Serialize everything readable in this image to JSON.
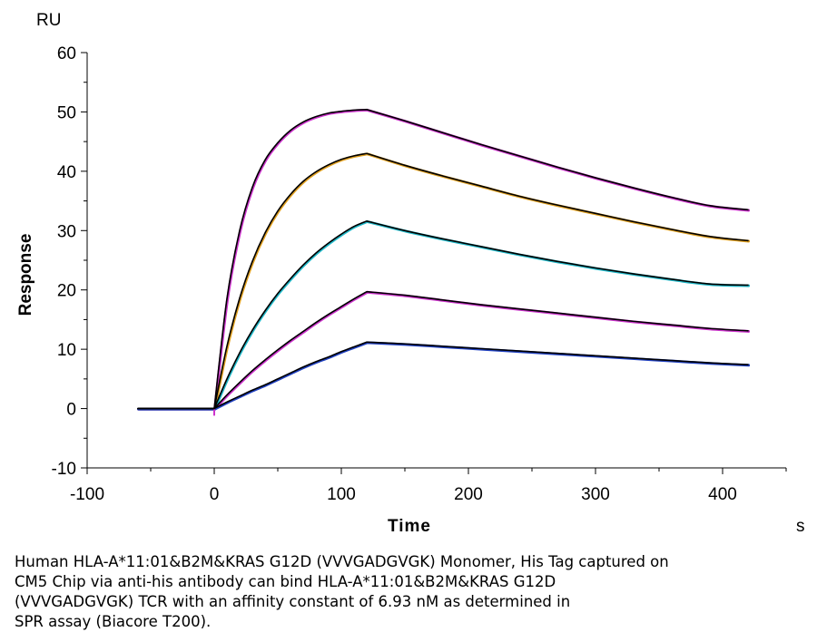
{
  "chart_data": {
    "type": "line",
    "title": "",
    "xlabel": "Time",
    "ylabel": "Response",
    "x_unit": "s",
    "y_unit": "RU",
    "xlim": [
      -100,
      450
    ],
    "ylim": [
      -10,
      60
    ],
    "x_ticks": [
      -100,
      0,
      100,
      200,
      300,
      400
    ],
    "y_ticks": [
      -10,
      0,
      10,
      20,
      30,
      40,
      50,
      60
    ],
    "grid": false,
    "legend": "none",
    "colors": {
      "fit_line": "#000000",
      "data_magenta": "#cc33cc",
      "data_orange": "#e0a020",
      "data_cyan": "#20b8c8",
      "data_blue": "#2040c0"
    },
    "association_start": 0,
    "association_end": 120,
    "series": [
      {
        "color": "#cc33cc",
        "x": [
          -60,
          0,
          10,
          20,
          30,
          40,
          50,
          60,
          70,
          80,
          90,
          100,
          110,
          120,
          150,
          180,
          210,
          240,
          270,
          300,
          330,
          360,
          390,
          420
        ],
        "y": [
          0,
          0,
          18.5,
          30.0,
          37.3,
          41.9,
          44.8,
          46.9,
          48.3,
          49.2,
          49.8,
          50.1,
          50.3,
          50.4,
          48.5,
          46.5,
          44.5,
          42.6,
          40.7,
          38.9,
          37.2,
          35.6,
          34.2,
          33.5
        ]
      },
      {
        "color": "#e0a020",
        "x": [
          -60,
          0,
          10,
          20,
          30,
          40,
          50,
          60,
          70,
          80,
          90,
          100,
          110,
          120,
          150,
          180,
          210,
          240,
          270,
          300,
          330,
          360,
          390,
          420
        ],
        "y": [
          0,
          0,
          10.5,
          18.6,
          24.8,
          29.6,
          33.3,
          36.1,
          38.3,
          39.9,
          41.1,
          42.0,
          42.6,
          43.0,
          41.0,
          39.2,
          37.5,
          35.8,
          34.3,
          32.9,
          31.5,
          30.2,
          29.0,
          28.3
        ]
      },
      {
        "color": "#20b8c8",
        "x": [
          -60,
          0,
          10,
          20,
          30,
          40,
          50,
          60,
          70,
          80,
          90,
          100,
          110,
          120,
          150,
          180,
          210,
          240,
          270,
          300,
          330,
          360,
          390,
          420
        ],
        "y": [
          0,
          0,
          5.0,
          9.4,
          13.2,
          16.5,
          19.4,
          21.9,
          24.2,
          26.2,
          27.9,
          29.4,
          30.7,
          31.6,
          30.0,
          28.6,
          27.3,
          26.0,
          24.8,
          23.7,
          22.7,
          21.8,
          21.0,
          20.8
        ]
      },
      {
        "color": "#cc33cc",
        "x": [
          -60,
          0,
          10,
          20,
          30,
          40,
          50,
          60,
          70,
          80,
          90,
          100,
          110,
          120,
          150,
          180,
          210,
          240,
          270,
          300,
          330,
          360,
          390,
          420
        ],
        "y": [
          0,
          0,
          2.3,
          4.4,
          6.4,
          8.2,
          9.9,
          11.5,
          13.0,
          14.5,
          15.9,
          17.2,
          18.5,
          19.7,
          19.1,
          18.3,
          17.5,
          16.8,
          16.1,
          15.4,
          14.7,
          14.1,
          13.5,
          13.1
        ]
      },
      {
        "color": "#2040c0",
        "x": [
          -60,
          0,
          10,
          20,
          30,
          40,
          50,
          60,
          70,
          80,
          90,
          100,
          110,
          120,
          150,
          180,
          210,
          240,
          270,
          300,
          330,
          360,
          390,
          420
        ],
        "y": [
          0,
          0,
          1.1,
          2.1,
          3.1,
          4.0,
          5.0,
          6.0,
          7.0,
          7.9,
          8.7,
          9.6,
          10.4,
          11.2,
          10.9,
          10.5,
          10.1,
          9.7,
          9.3,
          8.9,
          8.5,
          8.1,
          7.7,
          7.4
        ]
      }
    ]
  },
  "caption": {
    "lines": [
      "Human HLA-A*11:01&B2M&KRAS G12D (VVVGADGVGK) Monomer, His Tag captured on",
      "CM5 Chip via anti-his antibody can bind HLA-A*11:01&B2M&KRAS G12D",
      "(VVVGADGVGK) TCR with an affinity constant of 6.93 nM as determined in",
      "SPR assay (Biacore T200)."
    ]
  }
}
